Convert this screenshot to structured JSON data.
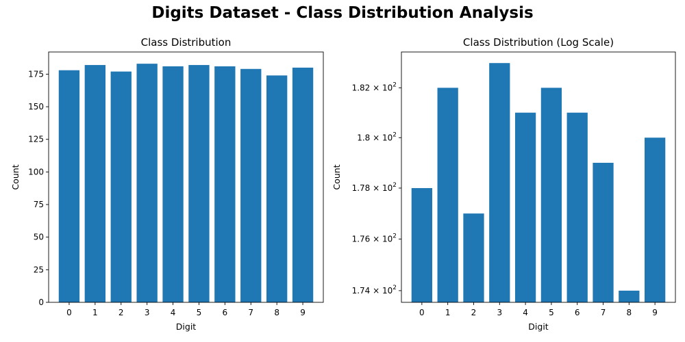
{
  "suptitle": "Digits Dataset - Class Distribution Analysis",
  "chart_data": [
    {
      "type": "bar",
      "title": "Class Distribution",
      "xlabel": "Digit",
      "ylabel": "Count",
      "categories": [
        "0",
        "1",
        "2",
        "3",
        "4",
        "5",
        "6",
        "7",
        "8",
        "9"
      ],
      "values": [
        178,
        182,
        177,
        183,
        181,
        182,
        181,
        179,
        174,
        180
      ],
      "ylim": [
        0,
        192
      ],
      "yscale": "linear",
      "yticks": [
        0,
        25,
        50,
        75,
        100,
        125,
        150,
        175
      ],
      "ytick_labels": [
        "0",
        "25",
        "50",
        "75",
        "100",
        "125",
        "150",
        "175"
      ],
      "bar_color": "#1f77b4",
      "grid": false
    },
    {
      "type": "bar",
      "title": "Class Distribution (Log Scale)",
      "xlabel": "Digit",
      "ylabel": "Count",
      "categories": [
        "0",
        "1",
        "2",
        "3",
        "4",
        "5",
        "6",
        "7",
        "8",
        "9"
      ],
      "values": [
        178,
        182,
        177,
        183,
        181,
        182,
        181,
        179,
        174,
        180
      ],
      "ylim": [
        173.55,
        183.45
      ],
      "yscale": "log",
      "yticks": [
        174,
        176,
        178,
        180,
        182
      ],
      "ytick_labels": [
        {
          "mant": "1.74",
          "exp": "2"
        },
        {
          "mant": "1.76",
          "exp": "2"
        },
        {
          "mant": "1.78",
          "exp": "2"
        },
        {
          "mant": "1.8",
          "exp": "2"
        },
        {
          "mant": "1.82",
          "exp": "2"
        }
      ],
      "bar_color": "#1f77b4",
      "grid": false
    }
  ]
}
